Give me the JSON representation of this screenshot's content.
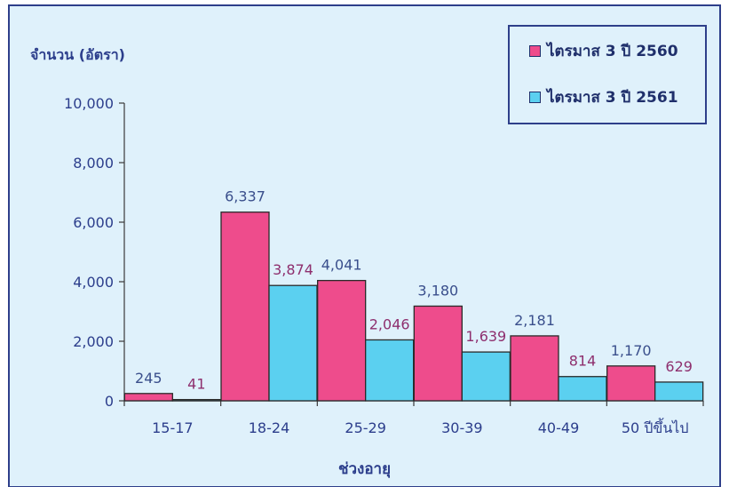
{
  "chart_data": {
    "type": "bar",
    "title": "",
    "xlabel": "ช่วงอายุ",
    "ylabel": "จำนวน (อัตรา)",
    "categories": [
      "15-17",
      "18-24",
      "25-29",
      "30-39",
      "40-49",
      "50 ปีขึ้นไป"
    ],
    "series": [
      {
        "name": "ไตรมาส 3 ปี 2560",
        "values": [
          245,
          6337,
          4041,
          3180,
          2181,
          1170
        ],
        "labels": [
          "245",
          "6,337",
          "4,041",
          "3,180",
          "2,181",
          "1,170"
        ],
        "color": "#ee4c8c",
        "label_color": "#3a4f8c"
      },
      {
        "name": "ไตรมาส 3 ปี 2561",
        "values": [
          41,
          3874,
          2046,
          1639,
          814,
          629
        ],
        "labels": [
          "41",
          "3,874",
          "2,046",
          "1,639",
          "814",
          "629"
        ],
        "color": "#5bd0f0",
        "label_color": "#8e2f6e"
      }
    ],
    "ylim": [
      0,
      10000
    ],
    "yticks": [
      0,
      2000,
      4000,
      6000,
      8000,
      10000
    ],
    "ytick_labels": [
      "0",
      "2,000",
      "4,000",
      "6,000",
      "8,000",
      "10,000"
    ],
    "grid": false,
    "legend_position": "top-right",
    "background_color": "#dff1fb",
    "border_color": "#2e3f8a"
  }
}
